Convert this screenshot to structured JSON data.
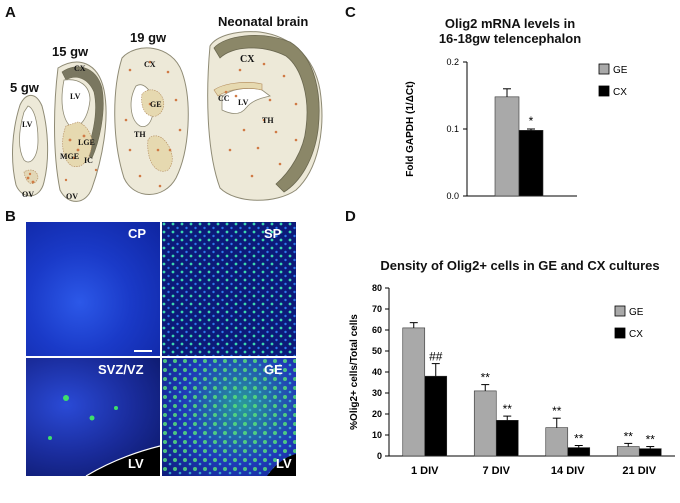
{
  "panels": {
    "a": {
      "letter": "A",
      "stages": [
        "5 gw",
        "15 gw",
        "19 gw",
        "Neonatal brain"
      ],
      "regions_5gw": [
        "LV",
        "OV"
      ],
      "regions_15gw": [
        "CX",
        "LV",
        "LGE",
        "MGE",
        "IC",
        "OV"
      ],
      "regions_19gw": [
        "CX",
        "GE",
        "TH"
      ],
      "regions_neonatal": [
        "CX",
        "CC",
        "LV",
        "TH"
      ]
    },
    "b": {
      "letter": "B",
      "images": [
        "CP",
        "SP",
        "SVZ/VZ",
        "GE"
      ],
      "lv_labels": [
        "LV",
        "LV"
      ]
    },
    "c": {
      "letter": "C",
      "title_line1": "Olig2 mRNA levels in",
      "title_line2": "16-18gw telencephalon"
    },
    "d": {
      "letter": "D",
      "title": "Density of Olig2+ cells in GE and CX cultures"
    }
  },
  "colors": {
    "ge": "#a9a9a9",
    "cx": "#000000",
    "dapi": "#1438c8",
    "olig2": "#4de36b"
  },
  "chart_data": [
    {
      "type": "bar",
      "panel": "C",
      "title": "Olig2 mRNA levels in 16-18gw telencephalon",
      "ylabel": "Fold GAPDH (1/ΔCt)",
      "ylim": [
        0,
        0.2
      ],
      "yticks": [
        "0.0",
        "0.1",
        "0.2"
      ],
      "categories": [
        ""
      ],
      "series": [
        {
          "name": "GE",
          "values": [
            0.148
          ],
          "errors": [
            0.012
          ]
        },
        {
          "name": "CX",
          "values": [
            0.098
          ],
          "errors": [
            0.002
          ],
          "annotation": [
            "*"
          ]
        }
      ],
      "legend": "right"
    },
    {
      "type": "bar",
      "panel": "D",
      "title": "Density of Olig2+ cells in GE and CX cultures",
      "ylabel": "%Olig2+ cells/Total cells",
      "ylim": [
        0,
        80
      ],
      "yticks": [
        "0",
        "10",
        "20",
        "30",
        "40",
        "50",
        "60",
        "70",
        "80"
      ],
      "categories": [
        "1 DIV",
        "7 DIV",
        "14 DIV",
        "21 DIV"
      ],
      "series": [
        {
          "name": "GE",
          "values": [
            61,
            31,
            13.5,
            4.5
          ],
          "errors": [
            2.5,
            3,
            4.5,
            1.5
          ],
          "annotations": [
            "",
            "**",
            "**",
            "**"
          ]
        },
        {
          "name": "CX",
          "values": [
            38,
            17,
            4,
            3.5
          ],
          "errors": [
            6,
            2,
            1,
            1
          ],
          "annotations": [
            "##",
            "**",
            "**",
            "**"
          ]
        }
      ],
      "legend": "right"
    }
  ]
}
